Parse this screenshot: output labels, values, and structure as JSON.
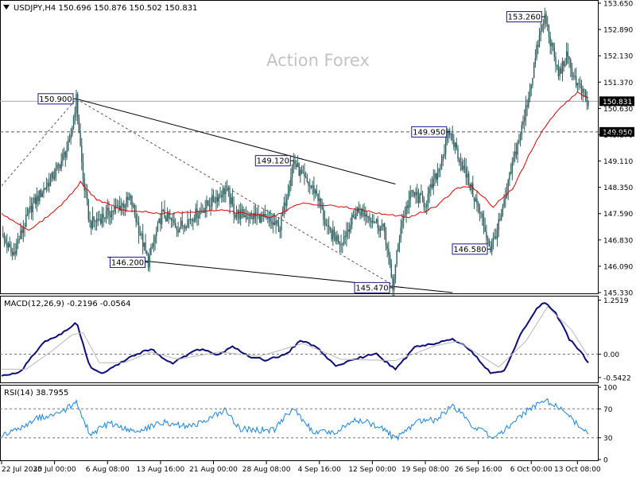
{
  "header": {
    "symbol_line": "USDJPY,H4  150.696 150.876 150.502 150.831",
    "watermark": "Action Forex"
  },
  "colors": {
    "candle": "#2f5f5f",
    "ma": "#e00000",
    "macd_main": "#0d0d7a",
    "macd_signal": "#b8b8b8",
    "rsi": "#1a82e0",
    "trendline": "#000000",
    "box_border": "#1a1a8a"
  },
  "chart_data": [
    {
      "type": "candlestick",
      "title": "USDJPY,H4",
      "ohlc_last": {
        "open": 150.696,
        "high": 150.876,
        "low": 150.502,
        "close": 150.831
      },
      "ylim": [
        145.33,
        153.65
      ],
      "y_ticks": [
        "153.650",
        "152.890",
        "152.130",
        "151.370",
        "150.630",
        "149.870",
        "149.110",
        "148.350",
        "147.590",
        "146.830",
        "146.090",
        "145.330"
      ],
      "x_ticks": [
        "22 Jul 2025",
        "30 Jul 00:00",
        "6 Aug 08:00",
        "13 Aug 16:00",
        "21 Aug 00:00",
        "28 Aug 08:00",
        "4 Sep 16:00",
        "12 Sep 00:00",
        "19 Sep 08:00",
        "26 Sep 16:00",
        "6 Oct 00:00",
        "13 Oct 08:00"
      ],
      "price_path": [
        {
          "t": 0,
          "p": 147.0
        },
        {
          "t": 8,
          "p": 146.4
        },
        {
          "t": 22,
          "p": 147.8
        },
        {
          "t": 40,
          "p": 148.8
        },
        {
          "t": 50,
          "p": 149.6
        },
        {
          "t": 55,
          "p": 150.9
        },
        {
          "t": 60,
          "p": 148.6
        },
        {
          "t": 65,
          "p": 147.3
        },
        {
          "t": 78,
          "p": 147.6
        },
        {
          "t": 95,
          "p": 148.0
        },
        {
          "t": 108,
          "p": 146.2
        },
        {
          "t": 118,
          "p": 147.6
        },
        {
          "t": 130,
          "p": 147.2
        },
        {
          "t": 150,
          "p": 147.8
        },
        {
          "t": 165,
          "p": 148.3
        },
        {
          "t": 172,
          "p": 147.6
        },
        {
          "t": 190,
          "p": 147.5
        },
        {
          "t": 205,
          "p": 147.2
        },
        {
          "t": 215,
          "p": 149.12
        },
        {
          "t": 222,
          "p": 148.6
        },
        {
          "t": 232,
          "p": 148.2
        },
        {
          "t": 240,
          "p": 147.1
        },
        {
          "t": 250,
          "p": 146.8
        },
        {
          "t": 262,
          "p": 147.7
        },
        {
          "t": 272,
          "p": 147.5
        },
        {
          "t": 282,
          "p": 147.1
        },
        {
          "t": 288,
          "p": 145.48
        },
        {
          "t": 294,
          "p": 147.3
        },
        {
          "t": 302,
          "p": 148.2
        },
        {
          "t": 312,
          "p": 147.9
        },
        {
          "t": 322,
          "p": 148.9
        },
        {
          "t": 330,
          "p": 149.95
        },
        {
          "t": 338,
          "p": 149.1
        },
        {
          "t": 346,
          "p": 148.3
        },
        {
          "t": 354,
          "p": 147.4
        },
        {
          "t": 360,
          "p": 146.58
        },
        {
          "t": 368,
          "p": 147.5
        },
        {
          "t": 376,
          "p": 149.0
        },
        {
          "t": 384,
          "p": 150.2
        },
        {
          "t": 390,
          "p": 151.4
        },
        {
          "t": 395,
          "p": 152.5
        },
        {
          "t": 400,
          "p": 153.26
        },
        {
          "t": 405,
          "p": 152.4
        },
        {
          "t": 410,
          "p": 151.6
        },
        {
          "t": 416,
          "p": 152.1
        },
        {
          "t": 424,
          "p": 151.3
        },
        {
          "t": 432,
          "p": 150.83
        }
      ],
      "ma_path": [
        {
          "t": 0,
          "p": 147.6
        },
        {
          "t": 20,
          "p": 147.1
        },
        {
          "t": 40,
          "p": 147.7
        },
        {
          "t": 52,
          "p": 148.2
        },
        {
          "t": 58,
          "p": 148.5
        },
        {
          "t": 70,
          "p": 148.0
        },
        {
          "t": 90,
          "p": 147.7
        },
        {
          "t": 120,
          "p": 147.6
        },
        {
          "t": 160,
          "p": 147.7
        },
        {
          "t": 200,
          "p": 147.5
        },
        {
          "t": 220,
          "p": 147.9
        },
        {
          "t": 250,
          "p": 147.8
        },
        {
          "t": 280,
          "p": 147.6
        },
        {
          "t": 300,
          "p": 147.5
        },
        {
          "t": 320,
          "p": 147.8
        },
        {
          "t": 334,
          "p": 148.3
        },
        {
          "t": 346,
          "p": 148.4
        },
        {
          "t": 362,
          "p": 147.8
        },
        {
          "t": 376,
          "p": 148.3
        },
        {
          "t": 395,
          "p": 149.8
        },
        {
          "t": 410,
          "p": 150.6
        },
        {
          "t": 425,
          "p": 151.1
        },
        {
          "t": 432,
          "p": 150.9
        }
      ],
      "annotations": [
        {
          "label": "150.900",
          "t": 55,
          "price": 150.9
        },
        {
          "label": "149.120",
          "t": 215,
          "price": 149.12
        },
        {
          "label": "146.200",
          "t": 108,
          "price": 146.2
        },
        {
          "label": "145.470",
          "t": 288,
          "price": 145.47
        },
        {
          "label": "149.950",
          "t": 330,
          "price": 149.95
        },
        {
          "label": "146.580",
          "t": 360,
          "price": 146.58
        },
        {
          "label": "153.260",
          "t": 400,
          "price": 153.26
        }
      ],
      "hlines": [
        {
          "label": "150.831",
          "price": 150.831,
          "style": "solid"
        },
        {
          "label": "149.950",
          "price": 149.95,
          "style": "dashed"
        }
      ],
      "trendlines": [
        {
          "from": {
            "t": 55,
            "price": 150.9
          },
          "to": {
            "t": 290,
            "price": 148.45
          },
          "style": "solid"
        },
        {
          "from": {
            "t": 55,
            "price": 150.9
          },
          "to": {
            "t": 288,
            "price": 145.55
          },
          "style": "dashed"
        },
        {
          "from": {
            "t": 78,
            "price": 146.35
          },
          "to": {
            "t": 332,
            "price": 145.33
          },
          "style": "solid"
        },
        {
          "from": {
            "t": 0,
            "price": 148.4
          },
          "to": {
            "t": 55,
            "price": 150.9
          },
          "style": "dashed"
        }
      ]
    },
    {
      "type": "line",
      "title": "MACD(12,26,9) -0.2196 -0.0564",
      "ylim": [
        -0.6,
        1.3
      ],
      "y_ticks": [
        "1.2519",
        "0.00",
        "-0.5422"
      ],
      "zero_line": 0.0,
      "series": [
        {
          "name": "main",
          "points": [
            {
              "t": 0,
              "v": -0.5
            },
            {
              "t": 14,
              "v": -0.4
            },
            {
              "t": 30,
              "v": 0.25
            },
            {
              "t": 48,
              "v": 0.55
            },
            {
              "t": 55,
              "v": 0.75
            },
            {
              "t": 65,
              "v": -0.3
            },
            {
              "t": 75,
              "v": -0.45
            },
            {
              "t": 95,
              "v": -0.05
            },
            {
              "t": 110,
              "v": 0.12
            },
            {
              "t": 125,
              "v": -0.22
            },
            {
              "t": 145,
              "v": 0.12
            },
            {
              "t": 160,
              "v": -0.02
            },
            {
              "t": 170,
              "v": 0.2
            },
            {
              "t": 182,
              "v": -0.05
            },
            {
              "t": 195,
              "v": -0.14
            },
            {
              "t": 210,
              "v": 0.0
            },
            {
              "t": 220,
              "v": 0.33
            },
            {
              "t": 232,
              "v": 0.15
            },
            {
              "t": 246,
              "v": -0.27
            },
            {
              "t": 262,
              "v": -0.1
            },
            {
              "t": 275,
              "v": 0.02
            },
            {
              "t": 290,
              "v": -0.35
            },
            {
              "t": 305,
              "v": 0.18
            },
            {
              "t": 320,
              "v": 0.25
            },
            {
              "t": 333,
              "v": 0.35
            },
            {
              "t": 346,
              "v": 0.08
            },
            {
              "t": 360,
              "v": -0.45
            },
            {
              "t": 370,
              "v": -0.4
            },
            {
              "t": 382,
              "v": 0.45
            },
            {
              "t": 394,
              "v": 1.05
            },
            {
              "t": 400,
              "v": 1.2
            },
            {
              "t": 408,
              "v": 0.95
            },
            {
              "t": 418,
              "v": 0.35
            },
            {
              "t": 426,
              "v": 0.08
            },
            {
              "t": 432,
              "v": -0.22
            }
          ]
        },
        {
          "name": "signal",
          "points": [
            {
              "t": 0,
              "v": -0.35
            },
            {
              "t": 18,
              "v": -0.35
            },
            {
              "t": 36,
              "v": 0.05
            },
            {
              "t": 52,
              "v": 0.45
            },
            {
              "t": 60,
              "v": 0.5
            },
            {
              "t": 72,
              "v": -0.2
            },
            {
              "t": 90,
              "v": -0.2
            },
            {
              "t": 110,
              "v": 0.05
            },
            {
              "t": 130,
              "v": -0.12
            },
            {
              "t": 160,
              "v": 0.05
            },
            {
              "t": 190,
              "v": -0.05
            },
            {
              "t": 222,
              "v": 0.25
            },
            {
              "t": 250,
              "v": -0.12
            },
            {
              "t": 290,
              "v": -0.15
            },
            {
              "t": 320,
              "v": 0.2
            },
            {
              "t": 336,
              "v": 0.3
            },
            {
              "t": 366,
              "v": -0.3
            },
            {
              "t": 386,
              "v": 0.3
            },
            {
              "t": 402,
              "v": 1.1
            },
            {
              "t": 420,
              "v": 0.55
            },
            {
              "t": 432,
              "v": -0.06
            }
          ]
        }
      ]
    },
    {
      "type": "line",
      "title": "RSI(14) 38.7955",
      "ylim": [
        0,
        100
      ],
      "y_ticks": [
        "100",
        "70",
        "30",
        "0"
      ],
      "levels": [
        70,
        30
      ],
      "series": [
        {
          "name": "RSI",
          "points": [
            {
              "t": 0,
              "v": 35
            },
            {
              "t": 12,
              "v": 40
            },
            {
              "t": 25,
              "v": 58
            },
            {
              "t": 40,
              "v": 62
            },
            {
              "t": 55,
              "v": 78
            },
            {
              "t": 65,
              "v": 35
            },
            {
              "t": 80,
              "v": 50
            },
            {
              "t": 100,
              "v": 38
            },
            {
              "t": 118,
              "v": 52
            },
            {
              "t": 140,
              "v": 45
            },
            {
              "t": 165,
              "v": 68
            },
            {
              "t": 175,
              "v": 42
            },
            {
              "t": 200,
              "v": 40
            },
            {
              "t": 215,
              "v": 72
            },
            {
              "t": 228,
              "v": 40
            },
            {
              "t": 246,
              "v": 38
            },
            {
              "t": 262,
              "v": 55
            },
            {
              "t": 280,
              "v": 45
            },
            {
              "t": 290,
              "v": 28
            },
            {
              "t": 305,
              "v": 52
            },
            {
              "t": 320,
              "v": 55
            },
            {
              "t": 332,
              "v": 75
            },
            {
              "t": 346,
              "v": 48
            },
            {
              "t": 362,
              "v": 30
            },
            {
              "t": 376,
              "v": 50
            },
            {
              "t": 390,
              "v": 72
            },
            {
              "t": 400,
              "v": 82
            },
            {
              "t": 412,
              "v": 70
            },
            {
              "t": 420,
              "v": 55
            },
            {
              "t": 426,
              "v": 45
            },
            {
              "t": 432,
              "v": 38.8
            }
          ]
        }
      ]
    }
  ]
}
